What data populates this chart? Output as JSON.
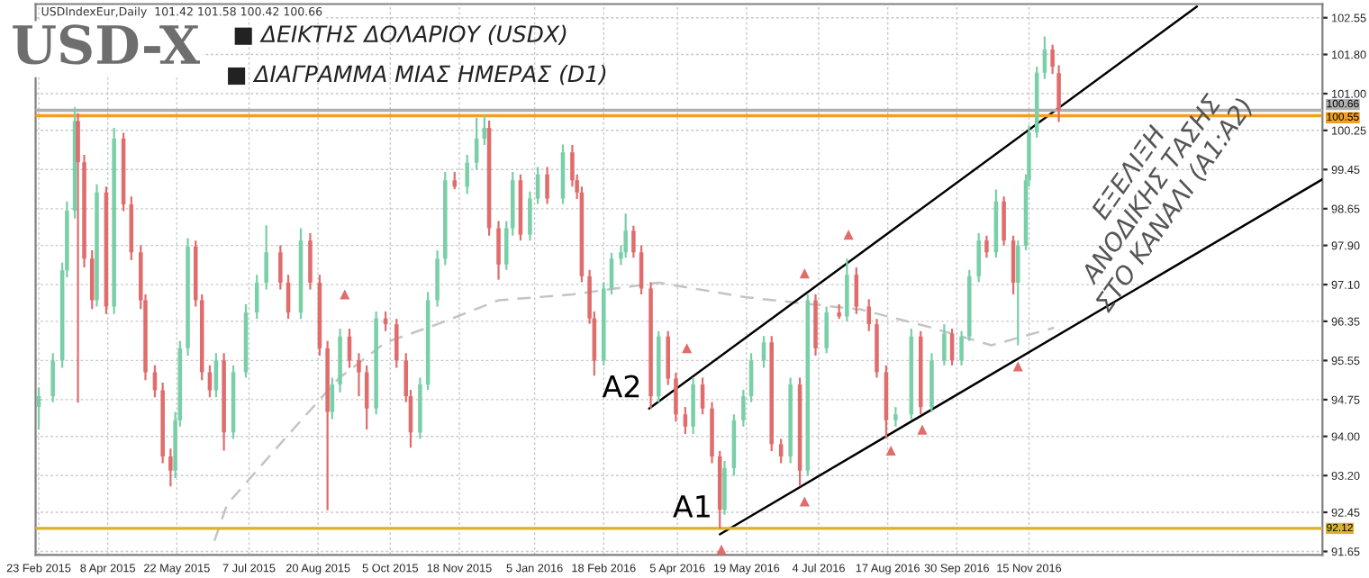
{
  "chart_data": {
    "type": "candlestick",
    "title": "USD-X",
    "subtitle": "USDIndexEur,Daily  101.42 101.58 100.42 100.66",
    "annotations": [
      "■ ΔΕΙΚΤΗΣ ΔΟΛΑΡΙΟΥ (USDX)",
      "■ ΔΙΑΓΡΑΜΜΑ ΜΙΑΣ ΗΜΕΡΑΣ (D1)",
      "ΕΞΕΛΙΞΗ\nΑΝΟΔΙΚΗΣ ΤΑΣΗΣ\nΣΤΟ ΚΑΝΑΛΙ (A1:A2)",
      {
        "text": "A2",
        "x": "2016-03-18",
        "y": 94.57
      },
      {
        "text": "A1",
        "x": "2016-05-02",
        "y": 92.12
      }
    ],
    "x": [
      "2015-02-23",
      "2015-03-04",
      "2015-03-10",
      "2015-03-13",
      "2015-03-18",
      "2015-03-20",
      "2015-03-24",
      "2015-03-29",
      "2015-04-01",
      "2015-04-07",
      "2015-04-12",
      "2015-04-18",
      "2015-04-23",
      "2015-04-29",
      "2015-05-02",
      "2015-05-08",
      "2015-05-13",
      "2015-05-18",
      "2015-05-21",
      "2015-05-24",
      "2015-05-29",
      "2015-06-03",
      "2015-06-07",
      "2015-06-12",
      "2015-06-16",
      "2015-06-21",
      "2015-06-27",
      "2015-07-05",
      "2015-07-12",
      "2015-07-18",
      "2015-07-27",
      "2015-08-01",
      "2015-08-09",
      "2015-08-15",
      "2015-08-21",
      "2015-08-26",
      "2015-08-29",
      "2015-09-03",
      "2015-09-09",
      "2015-09-15",
      "2015-09-20",
      "2015-09-26",
      "2015-10-02",
      "2015-10-09",
      "2015-10-15",
      "2015-10-18",
      "2015-10-24",
      "2015-10-29",
      "2015-11-04",
      "2015-11-09",
      "2015-11-15",
      "2015-11-23",
      "2015-11-29",
      "2015-12-04",
      "2015-12-07",
      "2015-12-13",
      "2015-12-18",
      "2015-12-22",
      "2015-12-27",
      "2016-01-02",
      "2016-01-07",
      "2016-01-13",
      "2016-01-23",
      "2016-01-29",
      "2016-02-01",
      "2016-02-04",
      "2016-02-09",
      "2016-02-12",
      "2016-02-18",
      "2016-02-23",
      "2016-02-29",
      "2016-03-03",
      "2016-03-08",
      "2016-03-13",
      "2016-03-19",
      "2016-03-24",
      "2016-03-30",
      "2016-04-04",
      "2016-04-10",
      "2016-04-15",
      "2016-04-21",
      "2016-04-27",
      "2016-05-02",
      "2016-05-05",
      "2016-05-11",
      "2016-05-17",
      "2016-05-22",
      "2016-05-30",
      "2016-06-04",
      "2016-06-10",
      "2016-06-16",
      "2016-06-22",
      "2016-06-27",
      "2016-07-02",
      "2016-07-09",
      "2016-07-17",
      "2016-07-22",
      "2016-07-28",
      "2016-08-05",
      "2016-08-10",
      "2016-08-16",
      "2016-08-22",
      "2016-09-01",
      "2016-09-07",
      "2016-09-14",
      "2016-09-22",
      "2016-09-27",
      "2016-10-03",
      "2016-10-08",
      "2016-10-14",
      "2016-10-19",
      "2016-10-25",
      "2016-10-30",
      "2016-11-05",
      "2016-11-08",
      "2016-11-13",
      "2016-11-15",
      "2016-11-20",
      "2016-11-25",
      "2016-11-30",
      "2016-12-04"
    ],
    "ohlc": [
      [
        94.6,
        95.0,
        94.14,
        94.82
      ],
      [
        94.82,
        95.7,
        94.7,
        95.55
      ],
      [
        95.55,
        97.55,
        95.4,
        97.39
      ],
      [
        97.39,
        98.8,
        97.25,
        98.61
      ],
      [
        98.61,
        100.72,
        98.45,
        100.44
      ],
      [
        100.44,
        100.6,
        94.69,
        99.6
      ],
      [
        99.6,
        99.75,
        97.45,
        97.63
      ],
      [
        97.63,
        97.8,
        96.6,
        96.78
      ],
      [
        96.78,
        99.15,
        96.65,
        98.98
      ],
      [
        98.98,
        99.1,
        96.5,
        96.65
      ],
      [
        96.65,
        100.3,
        96.5,
        100.08
      ],
      [
        100.08,
        100.2,
        98.6,
        98.74
      ],
      [
        98.74,
        98.9,
        97.6,
        97.76
      ],
      [
        97.76,
        97.9,
        96.6,
        96.78
      ],
      [
        96.78,
        96.9,
        95.15,
        95.31
      ],
      [
        95.31,
        95.45,
        94.8,
        94.94
      ],
      [
        94.94,
        95.1,
        93.45,
        93.59
      ],
      [
        93.59,
        93.75,
        92.98,
        93.3
      ],
      [
        93.3,
        94.5,
        93.15,
        94.33
      ],
      [
        94.33,
        95.95,
        94.2,
        95.8
      ],
      [
        95.8,
        98.05,
        95.65,
        97.88
      ],
      [
        97.88,
        98.0,
        96.65,
        96.78
      ],
      [
        96.78,
        96.9,
        95.15,
        95.31
      ],
      [
        95.31,
        95.45,
        94.8,
        94.94
      ],
      [
        94.94,
        95.7,
        94.8,
        95.55
      ],
      [
        95.55,
        95.7,
        93.71,
        94.08
      ],
      [
        94.08,
        95.45,
        93.95,
        95.31
      ],
      [
        95.31,
        96.7,
        95.2,
        96.53
      ],
      [
        96.53,
        97.3,
        96.4,
        97.14
      ],
      [
        97.14,
        98.31,
        97.0,
        97.76
      ],
      [
        97.76,
        97.9,
        97.0,
        97.14
      ],
      [
        97.14,
        97.3,
        96.4,
        96.53
      ],
      [
        96.53,
        98.25,
        96.4,
        98.0
      ],
      [
        98.0,
        98.15,
        97.0,
        97.14
      ],
      [
        97.14,
        97.3,
        95.65,
        95.8
      ],
      [
        95.8,
        95.95,
        92.49,
        94.5
      ],
      [
        94.5,
        95.2,
        94.35,
        95.06
      ],
      [
        95.06,
        96.2,
        94.9,
        96.04
      ],
      [
        96.04,
        96.2,
        95.4,
        95.55
      ],
      [
        95.55,
        95.7,
        94.82,
        95.31
      ],
      [
        95.31,
        95.45,
        94.14,
        94.57
      ],
      [
        94.57,
        96.55,
        94.45,
        96.41
      ],
      [
        96.41,
        96.55,
        96.15,
        96.29
      ],
      [
        96.29,
        96.4,
        95.4,
        95.55
      ],
      [
        95.55,
        95.7,
        94.7,
        94.82
      ],
      [
        94.82,
        94.95,
        93.77,
        94.08
      ],
      [
        94.08,
        95.2,
        93.95,
        95.06
      ],
      [
        95.06,
        96.95,
        94.95,
        96.78
      ],
      [
        96.78,
        97.8,
        96.65,
        97.63
      ],
      [
        97.63,
        99.4,
        97.5,
        99.23
      ],
      [
        99.23,
        99.4,
        99.05,
        99.1
      ],
      [
        99.1,
        99.75,
        98.95,
        99.59
      ],
      [
        99.59,
        100.51,
        99.45,
        100.08
      ],
      [
        100.08,
        100.57,
        99.95,
        100.3
      ],
      [
        100.3,
        100.45,
        98.1,
        98.25
      ],
      [
        98.25,
        98.4,
        97.2,
        97.51
      ],
      [
        97.51,
        98.4,
        97.4,
        98.25
      ],
      [
        98.25,
        99.4,
        98.1,
        99.23
      ],
      [
        99.23,
        99.35,
        98.0,
        98.12
      ],
      [
        98.12,
        99.0,
        98.0,
        98.86
      ],
      [
        98.86,
        99.5,
        98.75,
        99.35
      ],
      [
        99.35,
        99.5,
        98.75,
        98.86
      ],
      [
        98.86,
        99.96,
        98.75,
        99.8
      ],
      [
        99.8,
        99.95,
        99.1,
        99.23
      ],
      [
        99.23,
        99.35,
        98.85,
        98.98
      ],
      [
        98.98,
        99.1,
        97.15,
        97.27
      ],
      [
        97.27,
        97.4,
        96.3,
        96.41
      ],
      [
        96.41,
        96.55,
        95.24,
        95.55
      ],
      [
        95.55,
        97.15,
        95.45,
        97.02
      ],
      [
        97.02,
        97.75,
        96.9,
        97.63
      ],
      [
        97.63,
        97.9,
        97.5,
        97.76
      ],
      [
        97.76,
        98.55,
        97.65,
        98.2
      ],
      [
        98.2,
        98.3,
        97.65,
        97.76
      ],
      [
        97.76,
        97.9,
        96.9,
        97.02
      ],
      [
        97.02,
        97.15,
        94.57,
        94.82
      ],
      [
        94.82,
        96.15,
        94.7,
        96.04
      ],
      [
        96.04,
        96.15,
        95.05,
        95.18
      ],
      [
        95.18,
        95.3,
        94.3,
        94.45
      ],
      [
        94.45,
        94.6,
        94.05,
        94.2
      ],
      [
        94.2,
        95.2,
        94.05,
        95.06
      ],
      [
        95.06,
        95.2,
        94.45,
        94.57
      ],
      [
        94.57,
        94.7,
        93.45,
        93.59
      ],
      [
        93.59,
        93.7,
        92.12,
        92.5
      ],
      [
        92.5,
        93.5,
        92.4,
        93.35
      ],
      [
        93.35,
        94.45,
        93.2,
        94.33
      ],
      [
        94.33,
        94.95,
        94.2,
        94.82
      ],
      [
        94.82,
        95.7,
        94.7,
        95.55
      ],
      [
        95.55,
        96.05,
        95.4,
        95.92
      ],
      [
        95.92,
        96.05,
        93.7,
        93.84
      ],
      [
        93.84,
        93.95,
        93.45,
        93.59
      ],
      [
        93.59,
        95.2,
        93.45,
        95.06
      ],
      [
        95.06,
        95.2,
        92.98,
        93.3
      ],
      [
        93.3,
        96.9,
        93.2,
        96.78
      ],
      [
        96.78,
        96.9,
        95.65,
        95.8
      ],
      [
        95.8,
        96.65,
        95.7,
        96.53
      ],
      [
        96.53,
        96.7,
        96.4,
        96.45
      ],
      [
        96.45,
        97.63,
        96.35,
        97.3
      ],
      [
        97.3,
        97.45,
        96.5,
        96.65
      ],
      [
        96.65,
        96.8,
        96.15,
        96.29
      ],
      [
        96.29,
        96.4,
        95.2,
        95.31
      ],
      [
        95.31,
        95.45,
        93.96,
        94.33
      ],
      [
        94.33,
        94.6,
        94.2,
        94.45
      ],
      [
        94.45,
        96.2,
        94.35,
        96.04
      ],
      [
        96.04,
        96.15,
        94.45,
        94.6
      ],
      [
        94.6,
        95.7,
        94.5,
        95.55
      ],
      [
        95.55,
        96.29,
        95.45,
        96.1
      ],
      [
        96.1,
        96.2,
        95.45,
        95.55
      ],
      [
        95.55,
        96.15,
        95.45,
        96.04
      ],
      [
        96.04,
        97.4,
        95.95,
        97.27
      ],
      [
        97.27,
        98.15,
        97.15,
        98.0
      ],
      [
        98.0,
        98.1,
        97.65,
        97.76
      ],
      [
        97.76,
        99.04,
        97.65,
        98.8
      ],
      [
        98.8,
        98.9,
        97.9,
        98.0
      ],
      [
        98.0,
        98.1,
        96.9,
        97.14
      ],
      [
        97.14,
        98.0,
        95.86,
        97.9
      ],
      [
        97.9,
        99.35,
        97.8,
        99.23
      ],
      [
        99.23,
        100.35,
        99.1,
        100.21
      ],
      [
        100.21,
        101.55,
        100.1,
        101.43
      ],
      [
        101.43,
        102.17,
        101.3,
        101.9
      ],
      [
        101.9,
        102.0,
        101.4,
        101.55
      ],
      [
        101.42,
        101.58,
        100.42,
        100.66
      ]
    ],
    "colors": [
      "#79cfa7",
      "#79cfa7",
      "#79cfa7",
      "#79cfa7",
      "#79cfa7",
      "#e06c6c",
      "#e06c6c",
      "#e06c6c",
      "#79cfa7",
      "#e06c6c",
      "#79cfa7",
      "#e06c6c",
      "#e06c6c",
      "#e06c6c",
      "#e06c6c",
      "#e06c6c",
      "#e06c6c",
      "#e06c6c",
      "#79cfa7",
      "#79cfa7",
      "#79cfa7",
      "#e06c6c",
      "#e06c6c",
      "#e06c6c",
      "#79cfa7",
      "#e06c6c",
      "#79cfa7",
      "#79cfa7",
      "#79cfa7",
      "#79cfa7",
      "#e06c6c",
      "#e06c6c",
      "#79cfa7",
      "#e06c6c",
      "#e06c6c",
      "#e06c6c",
      "#79cfa7",
      "#79cfa7",
      "#e06c6c",
      "#e06c6c",
      "#e06c6c",
      "#79cfa7",
      "#e06c6c",
      "#e06c6c",
      "#e06c6c",
      "#e06c6c",
      "#79cfa7",
      "#79cfa7",
      "#79cfa7",
      "#79cfa7",
      "#e06c6c",
      "#79cfa7",
      "#79cfa7",
      "#79cfa7",
      "#e06c6c",
      "#e06c6c",
      "#79cfa7",
      "#79cfa7",
      "#e06c6c",
      "#79cfa7",
      "#79cfa7",
      "#e06c6c",
      "#79cfa7",
      "#e06c6c",
      "#e06c6c",
      "#e06c6c",
      "#e06c6c",
      "#e06c6c",
      "#79cfa7",
      "#79cfa7",
      "#79cfa7",
      "#79cfa7",
      "#e06c6c",
      "#e06c6c",
      "#e06c6c",
      "#79cfa7",
      "#e06c6c",
      "#e06c6c",
      "#e06c6c",
      "#79cfa7",
      "#e06c6c",
      "#e06c6c",
      "#e06c6c",
      "#79cfa7",
      "#79cfa7",
      "#79cfa7",
      "#79cfa7",
      "#79cfa7",
      "#e06c6c",
      "#e06c6c",
      "#79cfa7",
      "#e06c6c",
      "#79cfa7",
      "#e06c6c",
      "#79cfa7",
      "#e06c6c",
      "#79cfa7",
      "#e06c6c",
      "#e06c6c",
      "#e06c6c",
      "#e06c6c",
      "#79cfa7",
      "#79cfa7",
      "#e06c6c",
      "#79cfa7",
      "#79cfa7",
      "#e06c6c",
      "#79cfa7",
      "#79cfa7",
      "#79cfa7",
      "#e06c6c",
      "#79cfa7",
      "#e06c6c",
      "#e06c6c",
      "#79cfa7",
      "#79cfa7",
      "#79cfa7",
      "#79cfa7",
      "#79cfa7",
      "#e06c6c",
      "#e06c6c"
    ],
    "series": [
      {
        "type": "line",
        "color": "#c4c4c4",
        "line_style": "dashed",
        "x": [
          "2015-06-15",
          "2015-06-23",
          "2015-07-30",
          "2015-09-02",
          "2015-10-02",
          "2015-11-04",
          "2015-12-13",
          "2016-01-29",
          "2016-03-24",
          "2016-05-19",
          "2016-07-31",
          "2016-09-14",
          "2016-10-22",
          "2016-12-01"
        ],
        "values": [
          91.87,
          92.61,
          93.96,
          95.18,
          95.92,
          96.29,
          96.78,
          96.9,
          97.14,
          96.84,
          96.59,
          96.22,
          95.86,
          96.22
        ]
      },
      {
        "type": "line",
        "color": "#000000",
        "x": [
          "2016-03-18",
          "2017-03-02"
        ],
        "values": [
          94.57,
          102.78
        ]
      },
      {
        "type": "line",
        "color": "#000000",
        "x": [
          "2016-05-02",
          "2017-05-21"
        ],
        "values": [
          92.0,
          99.25
        ]
      },
      {
        "type": "scatter",
        "marker": "triangle",
        "color": "#e06c6c",
        "x": [
          "2015-09-06",
          "2016-04-11",
          "2016-06-25",
          "2016-07-23"
        ],
        "values": [
          96.9,
          95.8,
          97.33,
          98.12
        ]
      },
      {
        "type": "scatter",
        "marker": "triangle",
        "color": "#e06c6c",
        "x": [
          "2016-05-03",
          "2016-06-25",
          "2016-08-19",
          "2016-09-08",
          "2016-11-08"
        ],
        "values": [
          91.69,
          92.67,
          93.71,
          94.14,
          95.43
        ]
      }
    ],
    "ref_lines": [
      {
        "axis": "y",
        "value": 100.66,
        "label": "100.66",
        "color": "#b0b0b0"
      },
      {
        "axis": "y",
        "value": 100.55,
        "label": "100.55",
        "color": "#f0a020"
      },
      {
        "axis": "y",
        "value": 92.12,
        "label": "92.12",
        "color": "#d9b22e"
      }
    ],
    "xlim": [
      "2015-02-21",
      "2017-05-21"
    ],
    "xticks": [
      {
        "value": "2015-02-23",
        "label": "23 Feb 2015"
      },
      {
        "value": "2015-04-08",
        "label": "8 Apr 2015"
      },
      {
        "value": "2015-05-22",
        "label": "22 May 2015"
      },
      {
        "value": "2015-07-07",
        "label": "7 Jul 2015"
      },
      {
        "value": "2015-08-20",
        "label": "20 Aug 2015"
      },
      {
        "value": "2015-10-05",
        "label": "5 Oct 2015"
      },
      {
        "value": "2015-11-18",
        "label": "18 Nov 2015"
      },
      {
        "value": "2016-01-05",
        "label": "5 Jan 2016"
      },
      {
        "value": "2016-02-18",
        "label": "18 Feb 2016"
      },
      {
        "value": "2016-04-05",
        "label": "5 Apr 2016"
      },
      {
        "value": "2016-05-19",
        "label": "19 May 2016"
      },
      {
        "value": "2016-07-04",
        "label": "4 Jul 2016"
      },
      {
        "value": "2016-08-17",
        "label": "17 Aug 2016"
      },
      {
        "value": "2016-09-30",
        "label": "30 Sep 2016"
      },
      {
        "value": "2016-11-15",
        "label": "15 Nov 2016"
      }
    ],
    "ylim": [
      91.58,
      102.83
    ],
    "yticks": [
      102.55,
      {
        "value": 101.8,
        "label": "101.80"
      },
      {
        "value": 101.0,
        "label": "101.00"
      },
      100.25,
      99.45,
      98.65,
      {
        "value": 97.9,
        "label": "97.90"
      },
      {
        "value": 97.1,
        "label": "97.10"
      },
      96.35,
      95.55,
      94.75,
      {
        "value": 94.0,
        "label": "94.00"
      },
      {
        "value": 93.2,
        "label": "93.20"
      },
      92.45,
      91.65
    ],
    "grid": true
  }
}
